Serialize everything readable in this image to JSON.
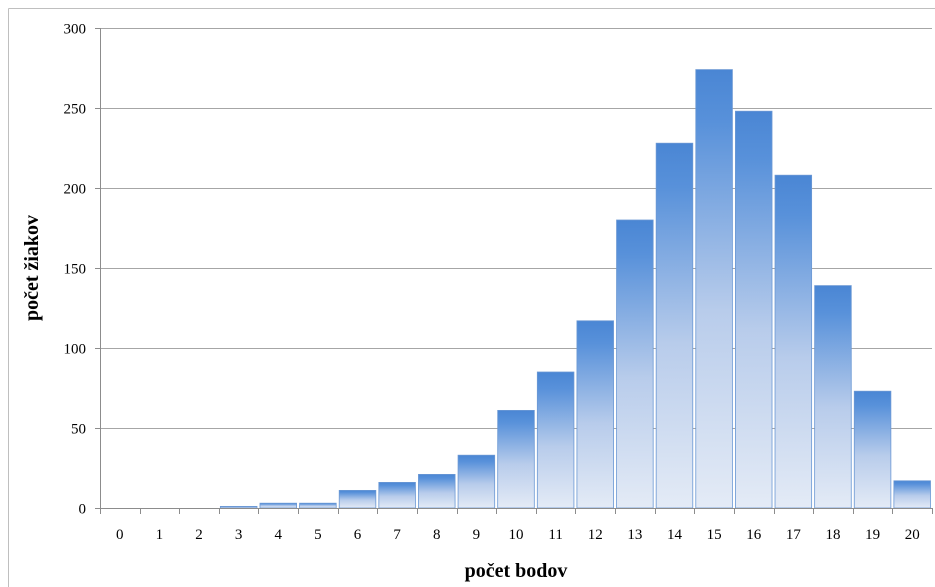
{
  "chart_data": {
    "type": "bar",
    "title": "",
    "xlabel": "počet bodov",
    "ylabel": "počet žiakov",
    "categories": [
      "0",
      "1",
      "2",
      "3",
      "4",
      "5",
      "6",
      "7",
      "8",
      "9",
      "10",
      "11",
      "12",
      "13",
      "14",
      "15",
      "16",
      "17",
      "18",
      "19",
      "20"
    ],
    "values": [
      0,
      0,
      0,
      1,
      3,
      3,
      11,
      16,
      21,
      33,
      61,
      85,
      117,
      180,
      228,
      274,
      248,
      208,
      139,
      73,
      17
    ],
    "ylim": [
      0,
      300
    ],
    "yticks": [
      "0",
      "50",
      "100",
      "150",
      "200",
      "250",
      "300"
    ],
    "grid": true,
    "legend": "none",
    "colors": {
      "bar_top": "#4a86d4",
      "bar_mid": "#b8cceb",
      "bar_bottom": "#e4ebf6",
      "bar_border": "#6b98d4",
      "grid": "#a6a6a6"
    }
  }
}
